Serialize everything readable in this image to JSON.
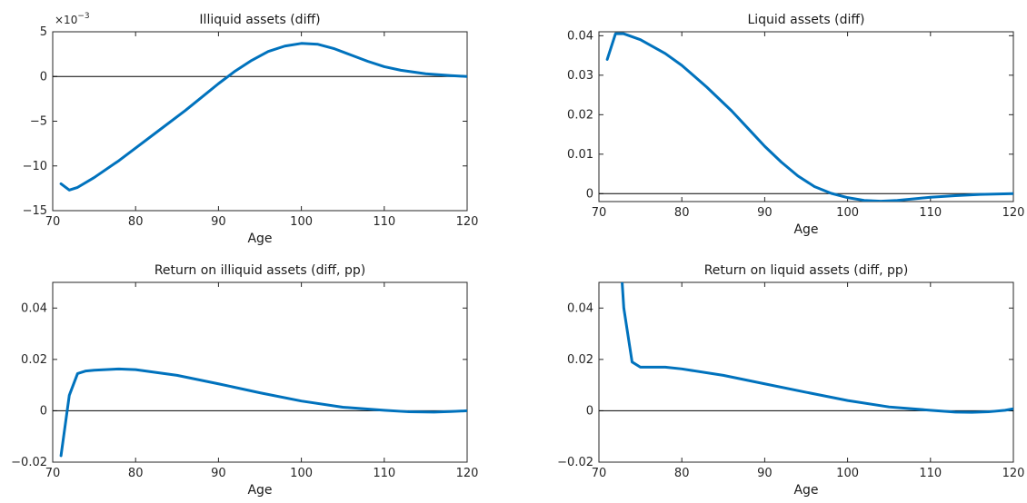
{
  "chart_data": [
    {
      "type": "line",
      "title": "Illiquid assets (diff)",
      "xlabel": "Age",
      "ylabel": "",
      "xlim": [
        70,
        120
      ],
      "ylim": [
        -15,
        5
      ],
      "xticks": [
        70,
        80,
        90,
        100,
        110,
        120
      ],
      "yticks": [
        -15,
        -10,
        -5,
        0,
        5
      ],
      "ytick_labels": [
        "−15",
        "−10",
        "−5",
        "0",
        "5"
      ],
      "y_exponent_label": "×10",
      "y_exponent_power": "−3",
      "zero_line": true,
      "line_color": "#0072BD",
      "series": [
        {
          "x": [
            71,
            72,
            73,
            75,
            78,
            80,
            83,
            86,
            88,
            90,
            92,
            94,
            96,
            98,
            100,
            102,
            104,
            106,
            108,
            110,
            112,
            115,
            118,
            120
          ],
          "y": [
            -12.0,
            -12.7,
            -12.4,
            -11.3,
            -9.4,
            -8.0,
            -5.9,
            -3.8,
            -2.3,
            -0.8,
            0.6,
            1.8,
            2.8,
            3.4,
            3.7,
            3.6,
            3.1,
            2.4,
            1.7,
            1.1,
            0.7,
            0.3,
            0.1,
            0.0
          ]
        }
      ]
    },
    {
      "type": "line",
      "title": "Liquid assets (diff)",
      "xlabel": "Age",
      "ylabel": "",
      "xlim": [
        70,
        120
      ],
      "ylim": [
        -0.002,
        0.041
      ],
      "xticks": [
        70,
        80,
        90,
        100,
        110,
        120
      ],
      "yticks": [
        0,
        0.01,
        0.02,
        0.03,
        0.04
      ],
      "ytick_labels": [
        "0",
        "0.01",
        "0.02",
        "0.03",
        "0.04"
      ],
      "zero_line": true,
      "line_color": "#0072BD",
      "series": [
        {
          "x": [
            71,
            72,
            73,
            75,
            78,
            80,
            83,
            86,
            88,
            90,
            92,
            94,
            96,
            98,
            100,
            102,
            104,
            106,
            108,
            110,
            113,
            116,
            120
          ],
          "y": [
            0.034,
            0.0405,
            0.0405,
            0.039,
            0.0355,
            0.0325,
            0.027,
            0.021,
            0.0165,
            0.012,
            0.008,
            0.0045,
            0.0018,
            0.0001,
            -0.001,
            -0.0017,
            -0.0019,
            -0.0017,
            -0.0013,
            -0.0009,
            -0.0005,
            -0.0002,
            0.0
          ]
        }
      ]
    },
    {
      "type": "line",
      "title": "Return on illiquid assets (diff, pp)",
      "xlabel": "Age",
      "ylabel": "",
      "xlim": [
        70,
        120
      ],
      "ylim": [
        -0.02,
        0.05
      ],
      "xticks": [
        70,
        80,
        90,
        100,
        110,
        120
      ],
      "yticks": [
        -0.02,
        0,
        0.02,
        0.04
      ],
      "ytick_labels": [
        "−0.02",
        "0",
        "0.02",
        "0.04"
      ],
      "zero_line": true,
      "line_color": "#0072BD",
      "series": [
        {
          "x": [
            71,
            72,
            73,
            74,
            75,
            78,
            80,
            85,
            90,
            95,
            100,
            105,
            110,
            113,
            116,
            118,
            120
          ],
          "y": [
            -0.0175,
            0.006,
            0.0145,
            0.0155,
            0.0158,
            0.0163,
            0.016,
            0.0138,
            0.0105,
            0.007,
            0.0038,
            0.0014,
            0.0002,
            -0.0004,
            -0.0005,
            -0.0003,
            0.0
          ]
        }
      ]
    },
    {
      "type": "line",
      "title": "Return on liquid assets (diff, pp)",
      "xlabel": "Age",
      "ylabel": "",
      "xlim": [
        70,
        120
      ],
      "ylim": [
        -0.02,
        0.05
      ],
      "xticks": [
        70,
        80,
        90,
        100,
        110,
        120
      ],
      "yticks": [
        -0.02,
        0,
        0.02,
        0.04
      ],
      "ytick_labels": [
        "−0.02",
        "0",
        "0.02",
        "0.04"
      ],
      "zero_line": true,
      "line_color": "#0072BD",
      "series": [
        {
          "x": [
            72.8,
            73,
            74,
            75,
            78,
            80,
            85,
            90,
            95,
            100,
            105,
            110,
            113,
            115,
            117,
            119,
            120
          ],
          "y": [
            0.05,
            0.04,
            0.019,
            0.017,
            0.017,
            0.0163,
            0.0138,
            0.0105,
            0.0072,
            0.004,
            0.0015,
            0.0002,
            -0.0005,
            -0.0006,
            -0.0004,
            0.0002,
            0.0008
          ]
        }
      ]
    }
  ]
}
